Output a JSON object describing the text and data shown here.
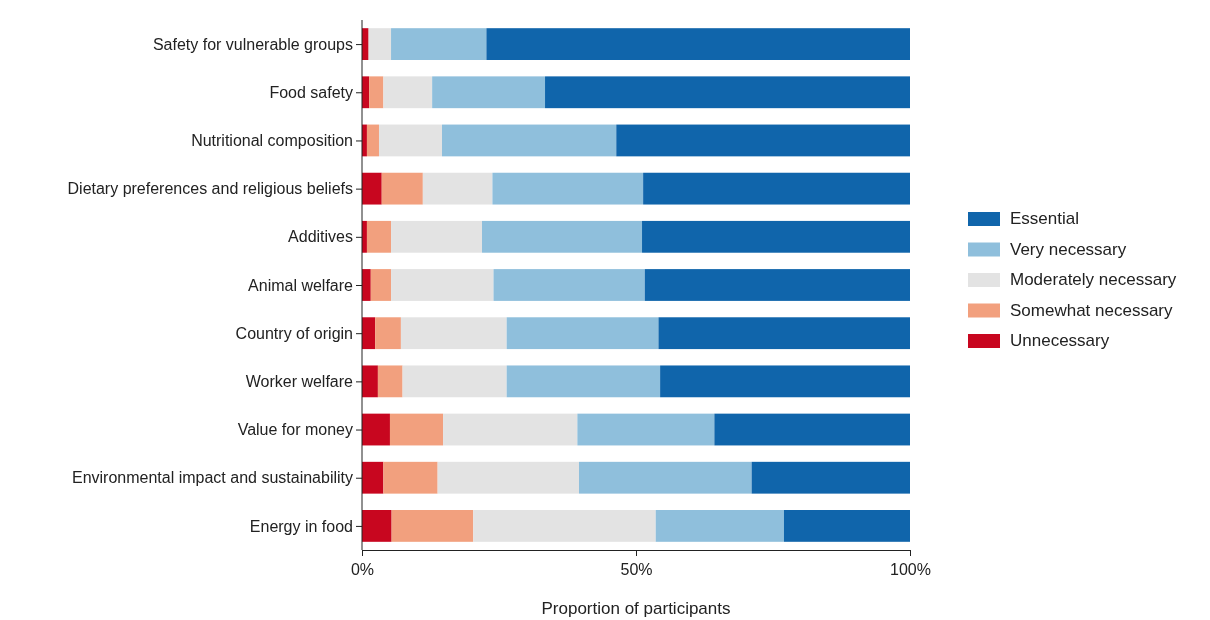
{
  "chart_data": {
    "type": "bar",
    "orientation": "horizontal",
    "stacked": true,
    "xlabel": "Proportion of participants",
    "categories": [
      "Safety for vulnerable groups",
      "Food safety",
      "Nutritional composition",
      "Dietary preferences and religious beliefs",
      "Additives",
      "Animal welfare",
      "Country of origin",
      "Worker welfare",
      "Value for money",
      "Environmental impact and sustainability",
      "Energy in food"
    ],
    "series": [
      {
        "name": "Unnecessary",
        "color": "#c8061f",
        "values": [
          1.2,
          1.3,
          0.9,
          3.6,
          0.9,
          1.6,
          2.4,
          2.9,
          5.1,
          3.9,
          5.4
        ]
      },
      {
        "name": "Somewhat necessary",
        "color": "#f2a07e",
        "values": [
          0,
          2.6,
          2.2,
          7.5,
          4.4,
          3.7,
          4.7,
          4.5,
          9.7,
          9.9,
          14.9
        ]
      },
      {
        "name": "Moderately necessary",
        "color": "#e3e3e3",
        "values": [
          4.1,
          8.9,
          11.5,
          12.7,
          16.6,
          18.7,
          19.3,
          19.0,
          24.5,
          25.8,
          33.3
        ]
      },
      {
        "name": "Very necessary",
        "color": "#8fbfdc",
        "values": [
          17.4,
          20.6,
          31.8,
          27.5,
          29.2,
          27.6,
          27.7,
          28.0,
          25.0,
          31.5,
          23.4
        ]
      },
      {
        "name": "Essential",
        "color": "#1065ab",
        "values": [
          77.3,
          66.6,
          53.6,
          48.7,
          48.9,
          48.4,
          45.9,
          45.6,
          35.7,
          28.9,
          23.0
        ]
      }
    ],
    "xlim": [
      0,
      100
    ],
    "xticks": [
      {
        "value": 0,
        "label": "0%"
      },
      {
        "value": 50,
        "label": "50%"
      },
      {
        "value": 100,
        "label": "100%"
      }
    ],
    "grid": false,
    "legend": "right"
  }
}
